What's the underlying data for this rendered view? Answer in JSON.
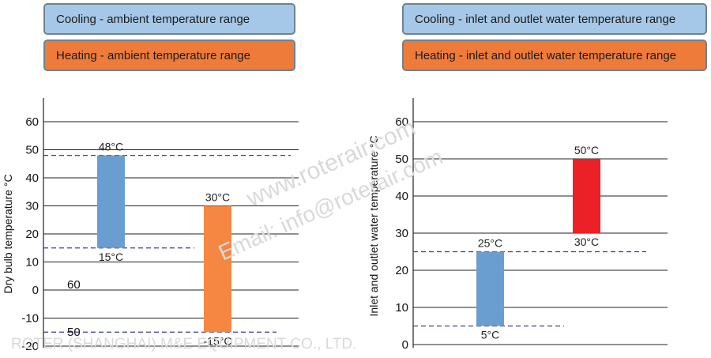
{
  "legends": {
    "left": {
      "cooling": "Cooling - ambient temperature range",
      "heating": "Heating - ambient temperature range"
    },
    "right": {
      "cooling": "Cooling - inlet and outlet water temperature range",
      "heating": "Heating - inlet and outlet water temperature range"
    }
  },
  "colors": {
    "cooling": "#6b9ed0",
    "heating": "#f58742",
    "heating_water": "#ec2027"
  },
  "watermarks": {
    "url": "www.roterair.com",
    "email": "Email: info@roterair.com",
    "company": "ROTER (SHANGHAI) M&E EQUIPMENT CO., LTD."
  },
  "chart_data": [
    {
      "type": "bar",
      "title": "",
      "ylabel": "Dry bulb temperature °C",
      "ylim": [
        -20,
        60
      ],
      "yticks": [
        "60",
        "50",
        "40",
        "30",
        "20",
        "10",
        "0",
        "-10",
        "-20"
      ],
      "series": [
        {
          "name": "Cooling - ambient temperature range",
          "low": 15,
          "high": 48,
          "low_label": "15°C",
          "high_label": "48°C"
        },
        {
          "name": "Heating - ambient temperature range",
          "low": -15,
          "high": 30,
          "low_label": "-15°C",
          "high_label": "30°C"
        }
      ],
      "reference_lines": [
        48,
        15,
        -15
      ],
      "annotations": [
        "60",
        "50"
      ]
    },
    {
      "type": "bar",
      "title": "",
      "ylabel": "Inlet and outlet water temperature °C",
      "ylim": [
        0,
        60
      ],
      "yticks": [
        "60",
        "50",
        "40",
        "30",
        "20",
        "10",
        "0"
      ],
      "series": [
        {
          "name": "Cooling - inlet and outlet water temperature range",
          "low": 5,
          "high": 25,
          "low_label": "5°C",
          "high_label": "25°C"
        },
        {
          "name": "Heating - inlet and outlet water temperature range",
          "low": 30,
          "high": 50,
          "low_label": "30°C",
          "high_label": "50°C"
        }
      ],
      "reference_lines": [
        25,
        5
      ]
    }
  ]
}
